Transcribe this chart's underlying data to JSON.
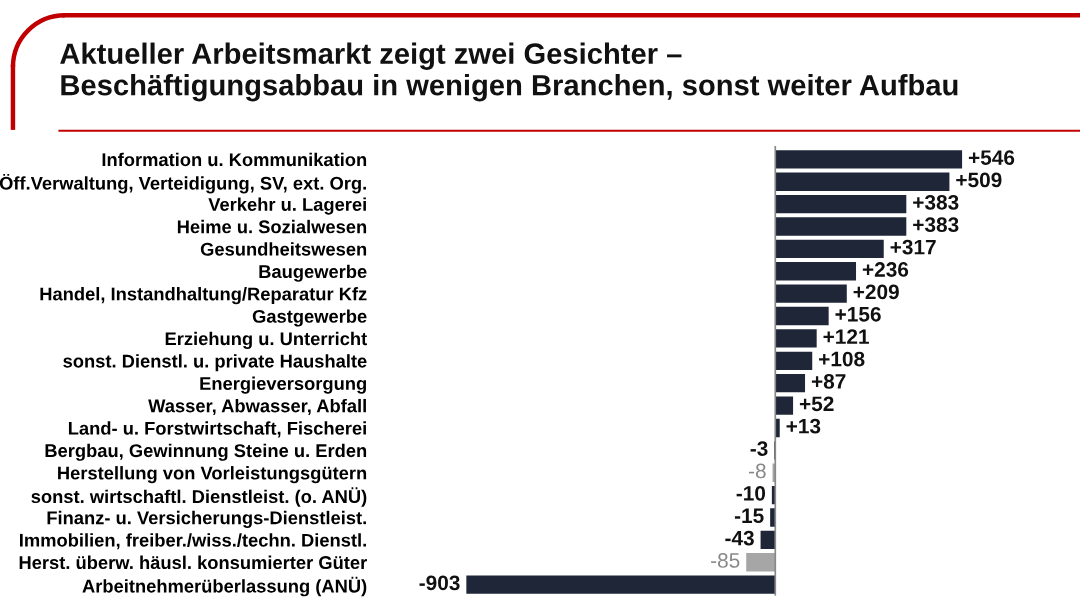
{
  "chart_data": {
    "type": "bar",
    "orientation": "horizontal",
    "title": "Aktueller Arbeitsmarkt zeigt zwei Gesichter –\nBeschäftigungsabbau in wenigen Branchen, sonst weiter Aufbau",
    "categories": [
      "Information u. Kommunikation",
      "Öff.Verwaltung, Verteidigung, SV, ext. Org.",
      "Verkehr u. Lagerei",
      "Heime u. Sozialwesen",
      "Gesundheitswesen",
      "Baugewerbe",
      "Handel, Instandhaltung/Reparatur Kfz",
      "Gastgewerbe",
      "Erziehung u. Unterricht",
      "sonst. Dienstl. u. private Haushalte",
      "Energieversorgung",
      "Wasser, Abwasser, Abfall",
      "Land- u. Forstwirtschaft, Fischerei",
      "Bergbau, Gewinnung Steine u. Erden",
      "Herstellung von Vorleistungsgütern",
      "sonst. wirtschaftl. Dienstleist. (o. ANÜ)",
      "Finanz- u. Versicherungs-Dienstleist.",
      "Immobilien, freiber./wiss./techn. Dienstl.",
      "Herst. überw. häusl. konsumierter Güter",
      "Arbeitnehmerüberlassung (ANÜ)"
    ],
    "values": [
      546,
      509,
      383,
      383,
      317,
      236,
      209,
      156,
      121,
      108,
      87,
      52,
      13,
      -3,
      -8,
      -10,
      -15,
      -43,
      -85,
      -903
    ],
    "value_labels": [
      "+546",
      "+509",
      "+383",
      "+383",
      "+317",
      "+236",
      "+209",
      "+156",
      "+121",
      "+108",
      "+87",
      "+52",
      "+13",
      "-3",
      "-8",
      "-10",
      "-15",
      "-43",
      "-85",
      "-903"
    ],
    "colors": [
      "#1e2637",
      "#1e2637",
      "#1e2637",
      "#1e2637",
      "#1e2637",
      "#1e2637",
      "#1e2637",
      "#1e2637",
      "#1e2637",
      "#1e2637",
      "#1e2637",
      "#1e2637",
      "#1e2637",
      "#1e2637",
      "#a6a6a6",
      "#1e2637",
      "#1e2637",
      "#1e2637",
      "#a6a6a6",
      "#1e2637"
    ]
  }
}
